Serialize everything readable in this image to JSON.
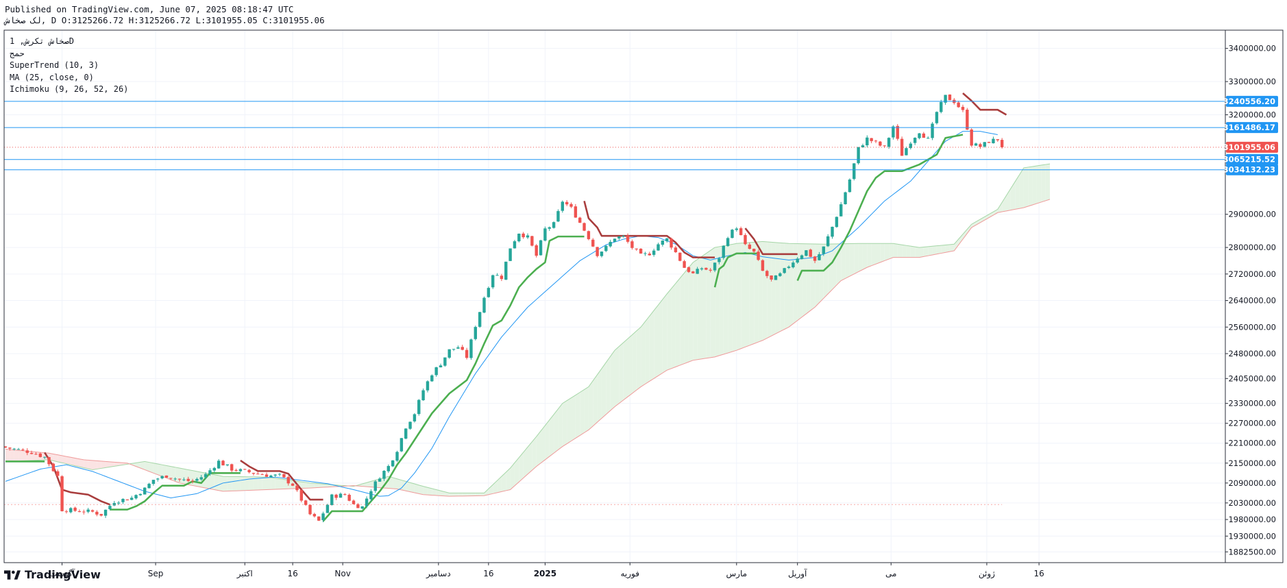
{
  "header": {
    "published": "Published on TradingView.com, June 07, 2025 08:18:47 UTC",
    "ohlc": "لک صخاش, D O:3125266.72 H:3125266.72 L:3101955.05 C:3101955.06"
  },
  "legend": {
    "symbol": "صخاش تکرش, 1D",
    "exchange": "حمج",
    "indicators": [
      "SuperTrend (10, 3)",
      "MA (25, close, 0)",
      "Ichimoku (9, 26, 52, 26)"
    ]
  },
  "brand": {
    "name": "TradingView",
    "logo_icon": "tradingview-logo-icon"
  },
  "colors": {
    "up": "#26a69a",
    "down": "#ef5350",
    "supertrend_up": "#4caf50",
    "supertrend_down": "#a93d3d",
    "ma": "#2196f3",
    "cloud_bull": "#e5f3e4",
    "cloud_bear": "#fbe3e3",
    "hline": "#2196f3",
    "last_price": "#ef5350"
  },
  "chart_data": {
    "type": "candlestick",
    "y_range": [
      1850000,
      3455000
    ],
    "x_range": [
      0,
      250
    ],
    "y_axis_labels": [
      "3400000.00",
      "3300000.00",
      "3200000.00",
      "2800000.00",
      "2720000.00",
      "2640000.00",
      "2560000.00",
      "2480000.00",
      "2405000.00",
      "2330000.00",
      "2270000.00",
      "2210000.00",
      "2150000.00",
      "2090000.00",
      "2030000.00",
      "1980000.00",
      "1930000.00",
      "1882500.00",
      "2900000.00"
    ],
    "y_axis_values": [
      3400000,
      3300000,
      3200000,
      2800000,
      2720000,
      2640000,
      2560000,
      2480000,
      2405000,
      2330000,
      2270000,
      2210000,
      2150000,
      2090000,
      2030000,
      1980000,
      1930000,
      1882500,
      2900000
    ],
    "x_axis_labels": [
      {
        "text": "آگوست",
        "x": 13
      },
      {
        "text": "Sep",
        "x": 34.5
      },
      {
        "text": "اکتبر",
        "x": 55
      },
      {
        "text": "16",
        "x": 66
      },
      {
        "text": "Nov",
        "x": 77.5
      },
      {
        "text": "دسامبر",
        "x": 99.5
      },
      {
        "text": "16",
        "x": 111
      },
      {
        "text": "2025",
        "x": 124,
        "bold": true
      },
      {
        "text": "فوریه",
        "x": 143.5
      },
      {
        "text": "مارس",
        "x": 168
      },
      {
        "text": "آوریل",
        "x": 182
      },
      {
        "text": "می",
        "x": 203.5
      },
      {
        "text": "ژوئن",
        "x": 225.5
      },
      {
        "text": "16",
        "x": 237.5
      }
    ],
    "horizontal_lines": [
      {
        "value": 3240556.2,
        "label": "3240556.20"
      },
      {
        "value": 3161486.17,
        "label": "3161486.17"
      },
      {
        "value": 3065215.52,
        "label": "3065215.52"
      },
      {
        "value": 3034132.23,
        "label": "3034132.23"
      }
    ],
    "last_price": {
      "value": 3101955.06,
      "label": "3101955.06"
    },
    "start_price_level": 2025000,
    "close_anchors": [
      [
        0,
        2197000
      ],
      [
        6,
        2183000
      ],
      [
        9,
        2168000
      ],
      [
        12,
        2110000
      ],
      [
        13,
        2010000
      ],
      [
        20,
        2003000
      ],
      [
        22,
        1995000
      ],
      [
        25,
        2035000
      ],
      [
        29,
        2045000
      ],
      [
        32,
        2072000
      ],
      [
        34,
        2100000
      ],
      [
        37,
        2112000
      ],
      [
        40,
        2100000
      ],
      [
        43,
        2095000
      ],
      [
        46,
        2115000
      ],
      [
        49,
        2155000
      ],
      [
        52,
        2132000
      ],
      [
        55,
        2125000
      ],
      [
        58,
        2118000
      ],
      [
        61,
        2112000
      ],
      [
        63,
        2112000
      ],
      [
        66,
        2085000
      ],
      [
        68,
        2040000
      ],
      [
        70,
        1995000
      ],
      [
        72,
        1975000
      ],
      [
        73,
        2000000
      ],
      [
        75,
        2050000
      ],
      [
        78,
        2055000
      ],
      [
        80,
        2025000
      ],
      [
        82,
        2018000
      ],
      [
        84,
        2070000
      ],
      [
        86,
        2110000
      ],
      [
        88,
        2140000
      ],
      [
        90,
        2190000
      ],
      [
        92,
        2260000
      ],
      [
        94,
        2300000
      ],
      [
        96,
        2370000
      ],
      [
        98,
        2420000
      ],
      [
        100,
        2450000
      ],
      [
        102,
        2490000
      ],
      [
        104,
        2500000
      ],
      [
        106,
        2470000
      ],
      [
        108,
        2565000
      ],
      [
        110,
        2650000
      ],
      [
        112,
        2720000
      ],
      [
        114,
        2710000
      ],
      [
        116,
        2800000
      ],
      [
        118,
        2845000
      ],
      [
        120,
        2830000
      ],
      [
        122,
        2775000
      ],
      [
        124,
        2855000
      ],
      [
        126,
        2870000
      ],
      [
        128,
        2940000
      ],
      [
        130,
        2918000
      ],
      [
        132,
        2875000
      ],
      [
        134,
        2830000
      ],
      [
        136,
        2780000
      ],
      [
        138,
        2800000
      ],
      [
        140,
        2830000
      ],
      [
        142,
        2832000
      ],
      [
        144,
        2800000
      ],
      [
        146,
        2775000
      ],
      [
        148,
        2782000
      ],
      [
        150,
        2810000
      ],
      [
        152,
        2825000
      ],
      [
        154,
        2785000
      ],
      [
        156,
        2740000
      ],
      [
        158,
        2720000
      ],
      [
        160,
        2738000
      ],
      [
        162,
        2730000
      ],
      [
        164,
        2770000
      ],
      [
        166,
        2835000
      ],
      [
        168,
        2862000
      ],
      [
        170,
        2805000
      ],
      [
        172,
        2785000
      ],
      [
        174,
        2728000
      ],
      [
        176,
        2700000
      ],
      [
        178,
        2718000
      ],
      [
        180,
        2745000
      ],
      [
        182,
        2770000
      ],
      [
        184,
        2790000
      ],
      [
        186,
        2760000
      ],
      [
        188,
        2800000
      ],
      [
        190,
        2862000
      ],
      [
        192,
        2930000
      ],
      [
        194,
        3005000
      ],
      [
        196,
        3098000
      ],
      [
        198,
        3128000
      ],
      [
        200,
        3115000
      ],
      [
        202,
        3100000
      ],
      [
        204,
        3165000
      ],
      [
        206,
        3080000
      ],
      [
        208,
        3120000
      ],
      [
        210,
        3150000
      ],
      [
        212,
        3125000
      ],
      [
        214,
        3208000
      ],
      [
        216,
        3255000
      ],
      [
        218,
        3240000
      ],
      [
        220,
        3210000
      ],
      [
        222,
        3112000
      ],
      [
        224,
        3104000
      ],
      [
        226,
        3120000
      ],
      [
        228,
        3126000
      ],
      [
        229,
        3101955
      ]
    ],
    "ma_anchors": [
      [
        0,
        2095000
      ],
      [
        8,
        2132000
      ],
      [
        14,
        2145000
      ],
      [
        20,
        2125000
      ],
      [
        26,
        2095000
      ],
      [
        32,
        2065000
      ],
      [
        38,
        2045000
      ],
      [
        44,
        2058000
      ],
      [
        50,
        2090000
      ],
      [
        56,
        2102000
      ],
      [
        62,
        2108000
      ],
      [
        68,
        2098000
      ],
      [
        74,
        2088000
      ],
      [
        80,
        2070000
      ],
      [
        86,
        2050000
      ],
      [
        88,
        2052000
      ],
      [
        91,
        2075000
      ],
      [
        94,
        2120000
      ],
      [
        98,
        2195000
      ],
      [
        102,
        2290000
      ],
      [
        108,
        2420000
      ],
      [
        114,
        2530000
      ],
      [
        120,
        2620000
      ],
      [
        126,
        2690000
      ],
      [
        132,
        2760000
      ],
      [
        138,
        2808000
      ],
      [
        142,
        2825000
      ],
      [
        146,
        2835000
      ],
      [
        150,
        2830000
      ],
      [
        154,
        2810000
      ],
      [
        158,
        2775000
      ],
      [
        162,
        2762000
      ],
      [
        166,
        2775000
      ],
      [
        170,
        2785000
      ],
      [
        174,
        2772000
      ],
      [
        180,
        2762000
      ],
      [
        186,
        2770000
      ],
      [
        190,
        2790000
      ],
      [
        196,
        2860000
      ],
      [
        202,
        2940000
      ],
      [
        208,
        3000000
      ],
      [
        212,
        3060000
      ],
      [
        216,
        3120000
      ],
      [
        220,
        3150000
      ],
      [
        224,
        3150000
      ],
      [
        228,
        3140000
      ]
    ],
    "supertrend_segments": [
      {
        "trend": "up",
        "points": [
          [
            0,
            2155000
          ],
          [
            9,
            2155000
          ]
        ]
      },
      {
        "trend": "down",
        "points": [
          [
            9,
            2182000
          ],
          [
            11,
            2140000
          ],
          [
            13,
            2070000
          ],
          [
            15,
            2062000
          ],
          [
            19,
            2055000
          ],
          [
            22,
            2035000
          ],
          [
            24,
            2025000
          ]
        ]
      },
      {
        "trend": "up",
        "points": [
          [
            24,
            2010000
          ],
          [
            28,
            2010000
          ],
          [
            30,
            2020000
          ],
          [
            32,
            2035000
          ],
          [
            34,
            2060000
          ],
          [
            36,
            2082000
          ],
          [
            41,
            2082000
          ],
          [
            43,
            2095000
          ],
          [
            45,
            2090000
          ],
          [
            47,
            2120000
          ],
          [
            54,
            2120000
          ]
        ]
      },
      {
        "trend": "down",
        "points": [
          [
            54,
            2158000
          ],
          [
            56,
            2140000
          ],
          [
            58,
            2126000
          ],
          [
            63,
            2126000
          ],
          [
            65,
            2118000
          ],
          [
            66,
            2102000
          ],
          [
            68,
            2070000
          ],
          [
            70,
            2040000
          ],
          [
            73,
            2040000
          ]
        ]
      },
      {
        "trend": "up",
        "points": [
          [
            73,
            1975000
          ],
          [
            75,
            2005000
          ],
          [
            82,
            2005000
          ],
          [
            84,
            2035000
          ],
          [
            86,
            2065000
          ],
          [
            88,
            2100000
          ],
          [
            90,
            2145000
          ],
          [
            92,
            2180000
          ],
          [
            94,
            2220000
          ],
          [
            96,
            2260000
          ],
          [
            98,
            2300000
          ],
          [
            100,
            2330000
          ],
          [
            102,
            2360000
          ],
          [
            104,
            2380000
          ],
          [
            106,
            2400000
          ],
          [
            108,
            2450000
          ],
          [
            110,
            2510000
          ],
          [
            112,
            2565000
          ],
          [
            114,
            2580000
          ],
          [
            116,
            2625000
          ],
          [
            118,
            2680000
          ],
          [
            120,
            2710000
          ],
          [
            122,
            2735000
          ],
          [
            124,
            2755000
          ],
          [
            125,
            2820000
          ],
          [
            127,
            2833000
          ],
          [
            133,
            2833000
          ]
        ]
      },
      {
        "trend": "down",
        "points": [
          [
            133,
            2940000
          ],
          [
            134,
            2888000
          ],
          [
            136,
            2860000
          ],
          [
            137,
            2835000
          ],
          [
            152,
            2835000
          ],
          [
            154,
            2815000
          ],
          [
            156,
            2785000
          ],
          [
            158,
            2770000
          ],
          [
            163,
            2770000
          ]
        ]
      },
      {
        "trend": "up",
        "points": [
          [
            163,
            2680000
          ],
          [
            164,
            2735000
          ],
          [
            165,
            2745000
          ],
          [
            166,
            2770000
          ],
          [
            168,
            2782000
          ],
          [
            170,
            2782000
          ],
          [
            173,
            2782000
          ]
        ]
      },
      {
        "trend": "down",
        "points": [
          [
            170,
            2858000
          ],
          [
            172,
            2825000
          ],
          [
            174,
            2780000
          ],
          [
            182,
            2780000
          ]
        ]
      },
      {
        "trend": "up",
        "points": [
          [
            182,
            2700000
          ],
          [
            183,
            2730000
          ],
          [
            185,
            2730000
          ],
          [
            188,
            2730000
          ],
          [
            190,
            2755000
          ],
          [
            192,
            2800000
          ],
          [
            194,
            2850000
          ],
          [
            196,
            2910000
          ],
          [
            198,
            2970000
          ],
          [
            200,
            3010000
          ],
          [
            202,
            3030000
          ],
          [
            206,
            3030000
          ],
          [
            210,
            3050000
          ],
          [
            214,
            3080000
          ],
          [
            216,
            3130000
          ],
          [
            220,
            3140000
          ]
        ]
      },
      {
        "trend": "down",
        "points": [
          [
            220,
            3265000
          ],
          [
            222,
            3242000
          ],
          [
            224,
            3215000
          ],
          [
            228,
            3215000
          ],
          [
            230,
            3200000
          ]
        ]
      }
    ],
    "cloud_top": [
      [
        0,
        2155000
      ],
      [
        10,
        2160000
      ],
      [
        20,
        2130000
      ],
      [
        32,
        2155000
      ],
      [
        40,
        2135000
      ],
      [
        50,
        2110000
      ],
      [
        60,
        2108000
      ],
      [
        70,
        2090000
      ],
      [
        80,
        2080000
      ],
      [
        88,
        2110000
      ],
      [
        96,
        2080000
      ],
      [
        102,
        2060000
      ],
      [
        110,
        2060000
      ],
      [
        116,
        2135000
      ],
      [
        122,
        2230000
      ],
      [
        128,
        2330000
      ],
      [
        134,
        2380000
      ],
      [
        140,
        2490000
      ],
      [
        146,
        2560000
      ],
      [
        152,
        2660000
      ],
      [
        158,
        2755000
      ],
      [
        163,
        2800000
      ],
      [
        168,
        2812000
      ],
      [
        174,
        2818000
      ],
      [
        180,
        2812000
      ],
      [
        188,
        2810000
      ],
      [
        196,
        2812000
      ],
      [
        204,
        2812000
      ],
      [
        210,
        2800000
      ],
      [
        218,
        2810000
      ],
      [
        222,
        2870000
      ],
      [
        228,
        2915000
      ],
      [
        234,
        3040000
      ],
      [
        240,
        3052000
      ]
    ],
    "cloud_bottom": [
      [
        0,
        2192000
      ],
      [
        10,
        2180000
      ],
      [
        18,
        2160000
      ],
      [
        28,
        2150000
      ],
      [
        40,
        2090000
      ],
      [
        50,
        2065000
      ],
      [
        60,
        2070000
      ],
      [
        70,
        2075000
      ],
      [
        80,
        2082000
      ],
      [
        90,
        2072000
      ],
      [
        96,
        2055000
      ],
      [
        102,
        2050000
      ],
      [
        110,
        2052000
      ],
      [
        116,
        2070000
      ],
      [
        122,
        2140000
      ],
      [
        128,
        2200000
      ],
      [
        134,
        2250000
      ],
      [
        140,
        2320000
      ],
      [
        146,
        2380000
      ],
      [
        152,
        2430000
      ],
      [
        158,
        2460000
      ],
      [
        163,
        2470000
      ],
      [
        168,
        2490000
      ],
      [
        174,
        2520000
      ],
      [
        180,
        2560000
      ],
      [
        186,
        2620000
      ],
      [
        192,
        2700000
      ],
      [
        198,
        2740000
      ],
      [
        204,
        2770000
      ],
      [
        210,
        2770000
      ],
      [
        218,
        2790000
      ],
      [
        222,
        2860000
      ],
      [
        228,
        2905000
      ],
      [
        234,
        2920000
      ],
      [
        240,
        2945000
      ]
    ]
  }
}
